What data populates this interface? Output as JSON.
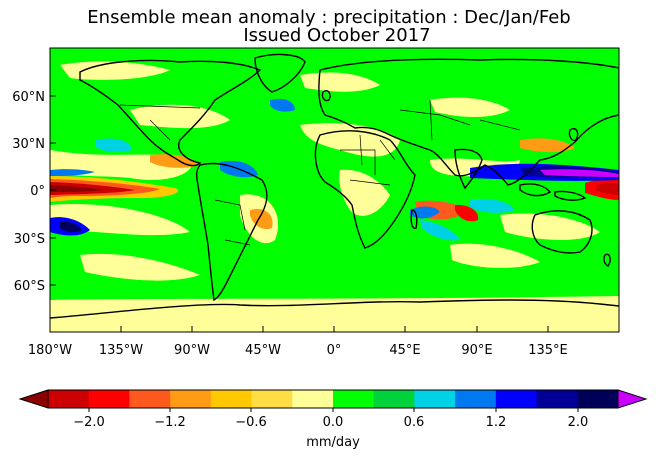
{
  "title_line1": "Ensemble mean anomaly : precipitation : Dec/Jan/Feb",
  "title_line2": "Issued October 2017",
  "map": {
    "projection": "equirectangular",
    "lon_range": [
      -180,
      180
    ],
    "lat_range": [
      -90,
      90
    ],
    "lon_ticks": [
      "180°W",
      "135°W",
      "90°W",
      "45°W",
      "0°",
      "45°E",
      "90°E",
      "135°E"
    ],
    "lat_ticks": [
      "60°N",
      "30°N",
      "0°",
      "30°S",
      "60°S"
    ],
    "field": "precipitation anomaly",
    "background_color": "#00ff00"
  },
  "colorbar": {
    "label": "mm/day",
    "tick_labels": [
      "−2.0",
      "−1.2",
      "−0.6",
      "0.0",
      "0.6",
      "1.2",
      "2.0"
    ],
    "under_color": "#8b0000",
    "over_color": "#cc00ff",
    "colors": [
      "#cc0000",
      "#ff0000",
      "#ff5a1e",
      "#ff9b14",
      "#ffc800",
      "#ffdd44",
      "#ffff99",
      "#00ff00",
      "#00d23c",
      "#00d2e6",
      "#0078f0",
      "#0000ff",
      "#000096",
      "#00005a"
    ]
  }
}
